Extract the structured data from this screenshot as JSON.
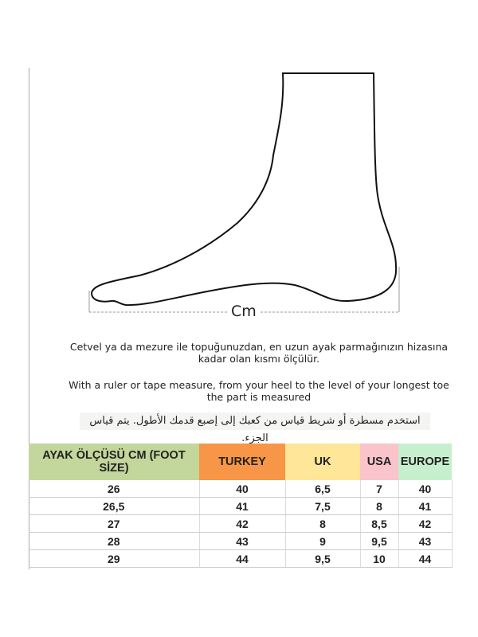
{
  "diagram": {
    "measure_label": "Cm"
  },
  "instructions": {
    "turkish": "Cetvel ya da mezure ile topuğunuzdan, en uzun ayak parmağınızın hizasına kadar olan kısmı ölçülür.",
    "english": "With a ruler or tape measure, from your heel to the level of your longest toe the part is measured",
    "arabic": "استخدم مسطرة أو شريط قياس من كعبك إلى إصبع قدمك الأطول. يتم قياس الجزء."
  },
  "table": {
    "headers": [
      "AYAK ÖLÇÜSÜ CM (FOOT SİZE)",
      "TURKEY",
      "UK",
      "USA",
      "EUROPE"
    ],
    "rows": [
      [
        "26",
        "40",
        "6,5",
        "7",
        "40"
      ],
      [
        "26,5",
        "41",
        "7,5",
        "8",
        "41"
      ],
      [
        "27",
        "42",
        "8",
        "8,5",
        "42"
      ],
      [
        "28",
        "43",
        "9",
        "9,5",
        "43"
      ],
      [
        "29",
        "44",
        "9,5",
        "10",
        "44"
      ]
    ]
  },
  "colors": {
    "foot_size": "#c3d69b",
    "turkey": "#f79646",
    "uk": "#ffe699",
    "usa": "#f9c4cc",
    "europe": "#c6efce"
  }
}
